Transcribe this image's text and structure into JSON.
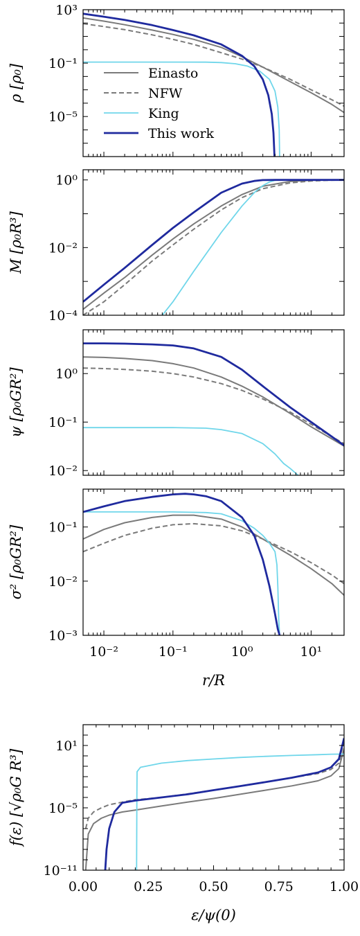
{
  "colors": {
    "einasto": "#7a7a7a",
    "nfw": "#7a7a7a",
    "king": "#6fd6ea",
    "this_work": "#1f2a9e"
  },
  "chart_data": [
    {
      "id": "rho",
      "type": "line",
      "ylabel": "ρ [ρ₀]",
      "xscale": "log",
      "yscale": "log",
      "xlim": [
        0.005,
        30
      ],
      "ylim": [
        1e-08,
        1000
      ],
      "yticks": [
        {
          "v": 1000,
          "label": "10³"
        },
        {
          "v": 0.1,
          "label": "10⁻¹"
        },
        {
          "v": 1e-05,
          "label": "10⁻⁵"
        }
      ],
      "legend": {
        "position": "lower-left",
        "entries": [
          "Einasto",
          "NFW",
          "King",
          "This work"
        ]
      },
      "series": [
        {
          "name": "Einasto",
          "style": "einasto",
          "x": [
            0.005,
            0.01,
            0.02,
            0.05,
            0.1,
            0.2,
            0.5,
            1,
            2,
            5,
            10,
            20,
            30
          ],
          "y": [
            240,
            140,
            75,
            30,
            14,
            6,
            1.5,
            0.3,
            0.05,
            0.004,
            0.0006,
            8e-05,
            2e-05
          ]
        },
        {
          "name": "NFW",
          "style": "nfw",
          "x": [
            0.005,
            0.01,
            0.02,
            0.05,
            0.1,
            0.2,
            0.5,
            1,
            2,
            5,
            10,
            20,
            30
          ],
          "y": [
            90,
            55,
            32,
            13,
            6,
            2.5,
            0.6,
            0.2,
            0.05,
            0.006,
            0.001,
            0.00018,
            6e-05
          ]
        },
        {
          "name": "King",
          "style": "king",
          "x": [
            0.005,
            0.1,
            0.3,
            0.5,
            0.8,
            1.2,
            1.8,
            2.5,
            3.0,
            3.3,
            3.45,
            3.5
          ],
          "y": [
            0.12,
            0.12,
            0.118,
            0.11,
            0.09,
            0.06,
            0.025,
            0.006,
            0.0008,
            5e-05,
            1e-06,
            1e-08
          ]
        },
        {
          "name": "This work",
          "style": "this_work",
          "x": [
            0.005,
            0.01,
            0.02,
            0.05,
            0.1,
            0.2,
            0.5,
            1,
            1.5,
            2,
            2.4,
            2.7,
            2.85,
            2.95
          ],
          "y": [
            500,
            300,
            170,
            70,
            30,
            12,
            2.5,
            0.35,
            0.06,
            0.006,
            0.0004,
            1.5e-05,
            6e-07,
            1e-08
          ]
        }
      ]
    },
    {
      "id": "mass",
      "type": "line",
      "ylabel": "M [ρ₀R³]",
      "xscale": "log",
      "yscale": "log",
      "xlim": [
        0.005,
        30
      ],
      "ylim": [
        0.0001,
        2
      ],
      "yticks": [
        {
          "v": 1,
          "label": "10⁰"
        },
        {
          "v": 0.01,
          "label": "10⁻²"
        },
        {
          "v": 0.0001,
          "label": "10⁻⁴"
        }
      ],
      "series": [
        {
          "name": "Einasto",
          "style": "einasto",
          "x": [
            0.005,
            0.01,
            0.02,
            0.05,
            0.1,
            0.2,
            0.5,
            1,
            2,
            5,
            10,
            20,
            30
          ],
          "y": [
            0.00015,
            0.00045,
            0.0013,
            0.006,
            0.018,
            0.05,
            0.17,
            0.37,
            0.65,
            0.9,
            0.97,
            0.995,
            1
          ]
        },
        {
          "name": "NFW",
          "style": "nfw",
          "x": [
            0.005,
            0.01,
            0.02,
            0.05,
            0.1,
            0.2,
            0.5,
            1,
            2,
            5,
            10,
            20,
            30
          ],
          "y": [
            8e-05,
            0.00025,
            0.0008,
            0.004,
            0.012,
            0.035,
            0.13,
            0.3,
            0.55,
            0.82,
            0.93,
            0.98,
            1
          ]
        },
        {
          "name": "King",
          "style": "king",
          "x": [
            0.07,
            0.1,
            0.2,
            0.5,
            1,
            1.5,
            2,
            2.5,
            3,
            3.5,
            30
          ],
          "y": [
            0.0001,
            0.00025,
            0.002,
            0.028,
            0.17,
            0.42,
            0.68,
            0.87,
            0.97,
            1,
            1
          ]
        },
        {
          "name": "This work",
          "style": "this_work",
          "x": [
            0.005,
            0.01,
            0.02,
            0.05,
            0.1,
            0.2,
            0.5,
            1,
            1.5,
            2,
            3,
            30
          ],
          "y": [
            0.00025,
            0.0008,
            0.0025,
            0.012,
            0.038,
            0.11,
            0.42,
            0.78,
            0.93,
            0.99,
            1,
            1
          ]
        }
      ]
    },
    {
      "id": "psi",
      "type": "line",
      "ylabel": "ψ [ρ₀GR²]",
      "xscale": "log",
      "yscale": "log",
      "xlim": [
        0.005,
        30
      ],
      "ylim": [
        0.008,
        8
      ],
      "yticks": [
        {
          "v": 1,
          "label": "10⁰"
        },
        {
          "v": 0.1,
          "label": "10⁻¹"
        },
        {
          "v": 0.01,
          "label": "10⁻²"
        }
      ],
      "series": [
        {
          "name": "Einasto",
          "style": "einasto",
          "x": [
            0.005,
            0.01,
            0.02,
            0.05,
            0.1,
            0.2,
            0.5,
            1,
            2,
            5,
            10,
            20,
            30
          ],
          "y": [
            2.2,
            2.15,
            2.05,
            1.85,
            1.6,
            1.3,
            0.85,
            0.55,
            0.33,
            0.15,
            0.08,
            0.045,
            0.032
          ]
        },
        {
          "name": "NFW",
          "style": "nfw",
          "x": [
            0.005,
            0.01,
            0.02,
            0.05,
            0.1,
            0.2,
            0.5,
            1,
            2,
            5,
            10,
            20,
            30
          ],
          "y": [
            1.3,
            1.27,
            1.22,
            1.12,
            1.0,
            0.85,
            0.62,
            0.45,
            0.3,
            0.16,
            0.09,
            0.05,
            0.036
          ]
        },
        {
          "name": "King",
          "style": "king",
          "x": [
            0.005,
            0.1,
            0.3,
            0.5,
            1,
            2,
            3,
            4,
            5,
            6.5
          ],
          "y": [
            0.077,
            0.077,
            0.075,
            0.07,
            0.058,
            0.036,
            0.022,
            0.014,
            0.011,
            0.008
          ]
        },
        {
          "name": "This work",
          "style": "this_work",
          "x": [
            0.005,
            0.01,
            0.02,
            0.05,
            0.1,
            0.2,
            0.5,
            1,
            2,
            5,
            10,
            20,
            30
          ],
          "y": [
            4.2,
            4.2,
            4.15,
            4.0,
            3.8,
            3.3,
            2.2,
            1.2,
            0.55,
            0.2,
            0.1,
            0.05,
            0.033
          ]
        }
      ]
    },
    {
      "id": "sigma2",
      "type": "line",
      "ylabel": "σ² [ρ₀GR²]",
      "xlabel": "r/R",
      "xscale": "log",
      "yscale": "log",
      "xlim": [
        0.005,
        30
      ],
      "ylim": [
        0.001,
        0.5
      ],
      "xticks": [
        {
          "v": 0.01,
          "label": "10⁻²"
        },
        {
          "v": 0.1,
          "label": "10⁻¹"
        },
        {
          "v": 1,
          "label": "10⁰"
        },
        {
          "v": 10,
          "label": "10¹"
        }
      ],
      "yticks": [
        {
          "v": 0.1,
          "label": "10⁻¹"
        },
        {
          "v": 0.01,
          "label": "10⁻²"
        },
        {
          "v": 0.001,
          "label": "10⁻³"
        }
      ],
      "series": [
        {
          "name": "Einasto",
          "style": "einasto",
          "x": [
            0.005,
            0.01,
            0.02,
            0.05,
            0.1,
            0.2,
            0.5,
            1,
            2,
            5,
            10,
            20,
            30
          ],
          "y": [
            0.06,
            0.09,
            0.12,
            0.15,
            0.165,
            0.165,
            0.14,
            0.1,
            0.06,
            0.03,
            0.017,
            0.009,
            0.0055
          ]
        },
        {
          "name": "NFW",
          "style": "nfw",
          "x": [
            0.005,
            0.01,
            0.02,
            0.05,
            0.1,
            0.2,
            0.5,
            1,
            2,
            5,
            10,
            20,
            30
          ],
          "y": [
            0.035,
            0.05,
            0.07,
            0.095,
            0.11,
            0.115,
            0.105,
            0.085,
            0.06,
            0.035,
            0.022,
            0.013,
            0.009
          ]
        },
        {
          "name": "King",
          "style": "king",
          "x": [
            0.005,
            0.1,
            0.3,
            0.5,
            1,
            1.5,
            2,
            2.5,
            3,
            3.2,
            3.3,
            3.4,
            3.5
          ],
          "y": [
            0.19,
            0.19,
            0.185,
            0.175,
            0.13,
            0.095,
            0.07,
            0.05,
            0.035,
            0.02,
            0.008,
            0.002,
            0.001
          ]
        },
        {
          "name": "This work",
          "style": "this_work",
          "x": [
            0.005,
            0.01,
            0.02,
            0.05,
            0.1,
            0.15,
            0.2,
            0.3,
            0.5,
            1,
            1.5,
            2,
            2.5,
            3,
            3.3,
            3.5
          ],
          "y": [
            0.19,
            0.24,
            0.3,
            0.36,
            0.4,
            0.41,
            0.4,
            0.37,
            0.3,
            0.15,
            0.07,
            0.025,
            0.008,
            0.0025,
            0.0013,
            0.001
          ]
        }
      ]
    },
    {
      "id": "df",
      "type": "line",
      "ylabel": "f(ε) [√ρ₀G R³]",
      "xlabel": "ε/ψ(0)",
      "xscale": "linear",
      "yscale": "log",
      "xlim": [
        0,
        1
      ],
      "ylim": [
        1e-11,
        1000
      ],
      "xticks": [
        {
          "v": 0,
          "label": "0.00"
        },
        {
          "v": 0.25,
          "label": "0.25"
        },
        {
          "v": 0.5,
          "label": "0.50"
        },
        {
          "v": 0.75,
          "label": "0.75"
        },
        {
          "v": 1,
          "label": "1.00"
        }
      ],
      "yticks": [
        {
          "v": 10,
          "label": "10¹"
        },
        {
          "v": 1e-05,
          "label": "10⁻⁵"
        },
        {
          "v": 1e-11,
          "label": "10⁻¹¹"
        }
      ],
      "series": [
        {
          "name": "Einasto",
          "style": "einasto",
          "x": [
            0.01,
            0.02,
            0.04,
            0.07,
            0.1,
            0.15,
            0.2,
            0.3,
            0.4,
            0.5,
            0.6,
            0.7,
            0.8,
            0.9,
            0.95,
            0.98,
            1.0
          ],
          "y": [
            1e-11,
            3e-08,
            3e-07,
            1e-06,
            2e-06,
            4e-06,
            6e-06,
            1.5e-05,
            3.5e-05,
            8e-05,
            0.0002,
            0.0005,
            0.0013,
            0.004,
            0.012,
            0.06,
            5
          ]
        },
        {
          "name": "NFW",
          "style": "nfw",
          "x": [
            0.01,
            0.02,
            0.04,
            0.07,
            0.1,
            0.15,
            0.2,
            0.3,
            0.4,
            0.5,
            0.6,
            0.7,
            0.8,
            0.9,
            0.95,
            0.98,
            1.0
          ],
          "y": [
            1e-07,
            1e-06,
            4e-06,
            1e-05,
            2e-05,
            3.5e-05,
            6e-05,
            0.0001,
            0.00022,
            0.0005,
            0.0012,
            0.003,
            0.008,
            0.02,
            0.05,
            0.2,
            30
          ]
        },
        {
          "name": "King",
          "style": "king",
          "x": [
            0.205,
            0.206,
            0.207,
            0.22,
            0.3,
            0.4,
            0.5,
            0.6,
            0.7,
            0.8,
            0.9,
            0.95,
            1.0
          ],
          "y": [
            1e-11,
            0.0001,
            0.03,
            0.08,
            0.2,
            0.35,
            0.5,
            0.7,
            0.9,
            1.1,
            1.3,
            1.45,
            1.5
          ]
        },
        {
          "name": "This work",
          "style": "this_work",
          "x": [
            0.085,
            0.09,
            0.1,
            0.12,
            0.15,
            0.2,
            0.3,
            0.4,
            0.5,
            0.6,
            0.7,
            0.8,
            0.9,
            0.95,
            0.98,
            1.0
          ],
          "y": [
            1e-11,
            1e-09,
            1e-07,
            4e-06,
            3e-05,
            5e-05,
            0.0001,
            0.0002,
            0.0005,
            0.0012,
            0.003,
            0.008,
            0.025,
            0.08,
            0.5,
            50
          ]
        }
      ]
    }
  ]
}
